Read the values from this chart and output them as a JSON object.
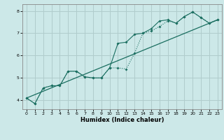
{
  "xlabel": "Humidex (Indice chaleur)",
  "bg_color": "#cce8e8",
  "grid_color": "#b0cccc",
  "line_color": "#1a6e60",
  "xlim": [
    -0.5,
    23.5
  ],
  "ylim": [
    3.6,
    8.3
  ],
  "yticks": [
    4,
    5,
    6,
    7,
    8
  ],
  "xticks": [
    0,
    1,
    2,
    3,
    4,
    5,
    6,
    7,
    8,
    9,
    10,
    11,
    12,
    13,
    14,
    15,
    16,
    17,
    18,
    19,
    20,
    21,
    22,
    23
  ],
  "line1_x": [
    0,
    1,
    2,
    3,
    4,
    5,
    6,
    7,
    8,
    9,
    10,
    11,
    12,
    13,
    14,
    15,
    16,
    17,
    18,
    19,
    20,
    21,
    22,
    23
  ],
  "line1_y": [
    4.1,
    3.85,
    4.55,
    4.65,
    4.65,
    5.3,
    5.3,
    5.05,
    5.0,
    5.0,
    5.45,
    6.55,
    6.6,
    6.95,
    7.0,
    7.2,
    7.55,
    7.6,
    7.45,
    7.75,
    7.95,
    7.7,
    7.45,
    7.6
  ],
  "line2_x": [
    0,
    1,
    2,
    3,
    4,
    5,
    6,
    7,
    8,
    9,
    10,
    11,
    12,
    13,
    14,
    15,
    16,
    17,
    18,
    19,
    20,
    21,
    22,
    23
  ],
  "line2_y": [
    4.1,
    3.85,
    4.55,
    4.65,
    4.65,
    5.3,
    5.3,
    5.05,
    5.0,
    5.0,
    5.45,
    5.45,
    5.4,
    6.1,
    7.0,
    7.1,
    7.3,
    7.55,
    7.45,
    7.75,
    7.95,
    7.7,
    7.45,
    7.6
  ],
  "line3_x": [
    0,
    23
  ],
  "line3_y": [
    4.1,
    7.6
  ]
}
